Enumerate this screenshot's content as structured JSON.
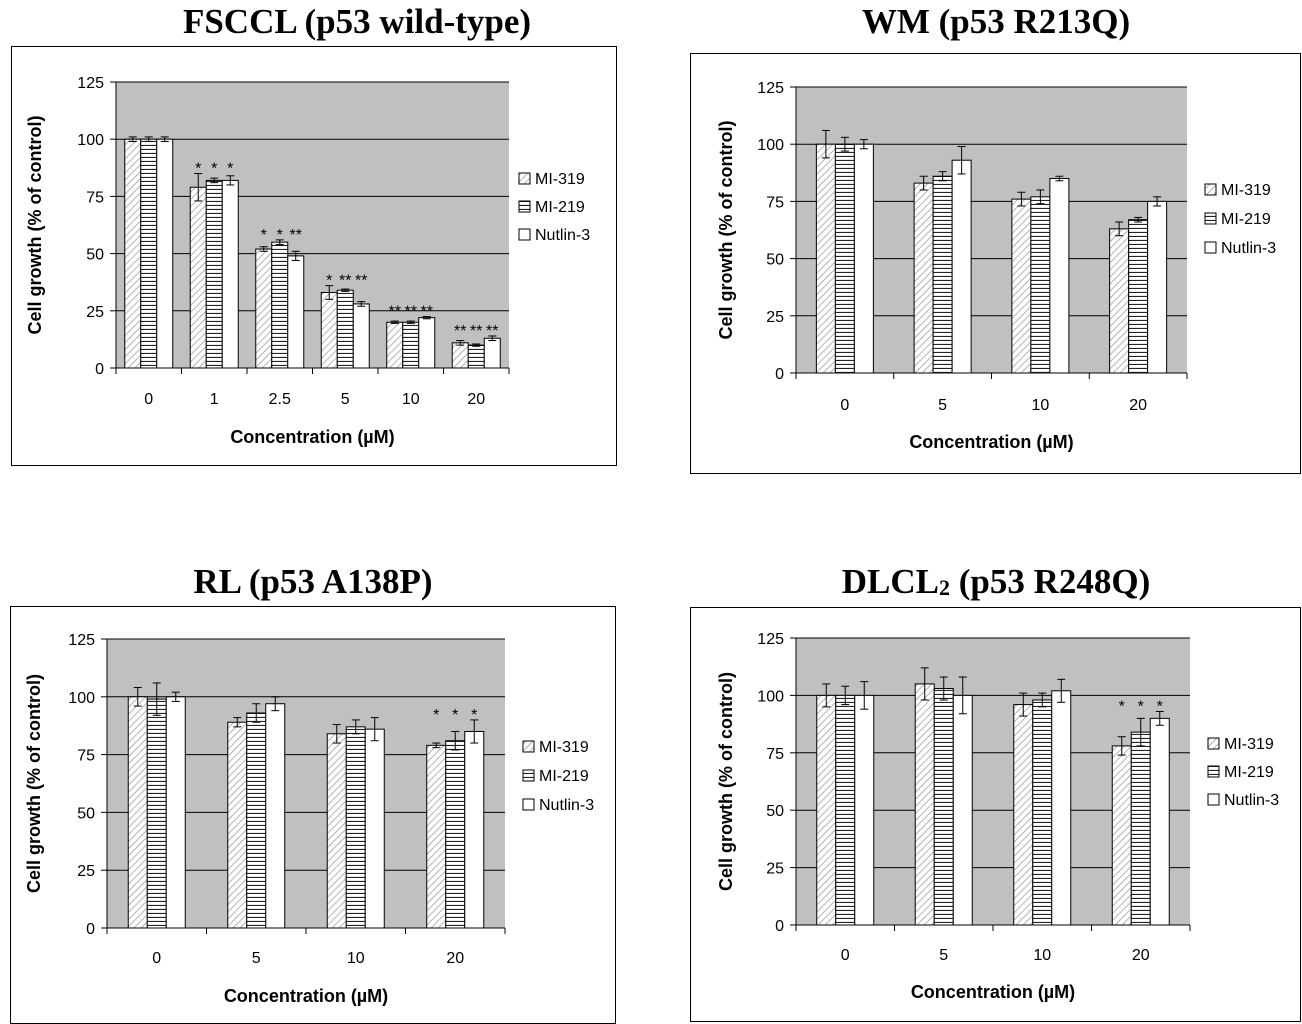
{
  "chart_data": [
    {
      "type": "bar",
      "title": "FSCCL (p53 wild-type)",
      "title_sub": "",
      "title_rest": "",
      "xlabel": "Concentration (µM)",
      "ylabel": "Cell growth (% of control)",
      "ylim": [
        0,
        125
      ],
      "yticks": [
        0,
        25,
        50,
        75,
        100,
        125
      ],
      "grid": true,
      "legend_placement": "right",
      "categories": [
        "0",
        "1",
        "2.5",
        "5",
        "10",
        "20"
      ],
      "series": [
        {
          "name": "MI-319",
          "pattern": "diagonal-hatch",
          "values": [
            100,
            79,
            52,
            33,
            20,
            11
          ],
          "errors": [
            1,
            6,
            1,
            3,
            0.5,
            1
          ]
        },
        {
          "name": "MI-219",
          "pattern": "horizontal-stripes",
          "values": [
            100,
            82,
            55,
            34,
            20,
            10
          ],
          "errors": [
            1,
            1,
            1,
            0.5,
            0.5,
            0.5
          ]
        },
        {
          "name": "Nutlin-3",
          "pattern": "solid-white",
          "values": [
            100,
            82,
            49,
            28,
            22,
            13
          ],
          "errors": [
            1,
            2,
            2,
            1,
            0.5,
            1
          ]
        }
      ],
      "annotations": [
        {
          "category": 1,
          "labels": [
            "*",
            "*",
            "*"
          ]
        },
        {
          "category": 2,
          "labels": [
            "*",
            "*",
            "**"
          ]
        },
        {
          "category": 3,
          "labels": [
            "*",
            "**",
            "**"
          ]
        },
        {
          "category": 4,
          "labels": [
            "**",
            "**",
            "**"
          ]
        },
        {
          "category": 5,
          "labels": [
            "**",
            "**",
            "**"
          ]
        }
      ]
    },
    {
      "type": "bar",
      "title": "WM (p53 R213Q)",
      "title_sub": "",
      "title_rest": "",
      "xlabel": "Concentration (µM)",
      "ylabel": "Cell growth (% of control)",
      "ylim": [
        0,
        125
      ],
      "yticks": [
        0,
        25,
        50,
        75,
        100,
        125
      ],
      "grid": true,
      "legend_placement": "right",
      "categories": [
        "0",
        "5",
        "10",
        "20"
      ],
      "series": [
        {
          "name": "MI-319",
          "pattern": "diagonal-hatch",
          "values": [
            100,
            83,
            76,
            63
          ],
          "errors": [
            6,
            3,
            3,
            3
          ]
        },
        {
          "name": "MI-219",
          "pattern": "horizontal-stripes",
          "values": [
            100,
            86,
            77,
            67
          ],
          "errors": [
            3,
            2,
            3,
            1
          ]
        },
        {
          "name": "Nutlin-3",
          "pattern": "solid-white",
          "values": [
            100,
            93,
            85,
            75
          ],
          "errors": [
            2,
            6,
            1,
            2
          ]
        }
      ],
      "annotations": []
    },
    {
      "type": "bar",
      "title": "RL (p53 A138P)",
      "title_sub": "",
      "title_rest": "",
      "xlabel": "Concentration (µM)",
      "ylabel": "Cell growth (% of control)",
      "ylim": [
        0,
        125
      ],
      "yticks": [
        0,
        25,
        50,
        75,
        100,
        125
      ],
      "grid": true,
      "legend_placement": "right",
      "categories": [
        "0",
        "5",
        "10",
        "20"
      ],
      "series": [
        {
          "name": "MI-319",
          "pattern": "diagonal-hatch",
          "values": [
            100,
            89,
            84,
            79
          ],
          "errors": [
            4,
            2,
            4,
            1
          ]
        },
        {
          "name": "MI-219",
          "pattern": "horizontal-stripes",
          "values": [
            99,
            93,
            87,
            81
          ],
          "errors": [
            7,
            4,
            3,
            4
          ]
        },
        {
          "name": "Nutlin-3",
          "pattern": "solid-white",
          "values": [
            100,
            97,
            86,
            85
          ],
          "errors": [
            2,
            3,
            5,
            5
          ]
        }
      ],
      "annotations": [
        {
          "category": 3,
          "labels": [
            "*",
            "*",
            "*"
          ]
        }
      ]
    },
    {
      "type": "bar",
      "title": "DLCL",
      "title_sub": "2",
      "title_rest": " (p53 R248Q)",
      "xlabel": "Concentration (µM)",
      "ylabel": "Cell growth (% of control)",
      "ylim": [
        0,
        125
      ],
      "yticks": [
        0,
        25,
        50,
        75,
        100,
        125
      ],
      "grid": true,
      "legend_placement": "right",
      "categories": [
        "0",
        "5",
        "10",
        "20"
      ],
      "series": [
        {
          "name": "MI-319",
          "pattern": "diagonal-hatch",
          "values": [
            100,
            105,
            96,
            78
          ],
          "errors": [
            5,
            7,
            5,
            4
          ]
        },
        {
          "name": "MI-219",
          "pattern": "horizontal-stripes",
          "values": [
            100,
            103,
            98,
            84
          ],
          "errors": [
            4,
            5,
            3,
            6
          ]
        },
        {
          "name": "Nutlin-3",
          "pattern": "solid-white",
          "values": [
            100,
            100,
            102,
            90
          ],
          "errors": [
            6,
            8,
            5,
            3
          ]
        }
      ],
      "annotations": [
        {
          "category": 3,
          "labels": [
            "*",
            "*",
            "*"
          ]
        }
      ]
    }
  ]
}
